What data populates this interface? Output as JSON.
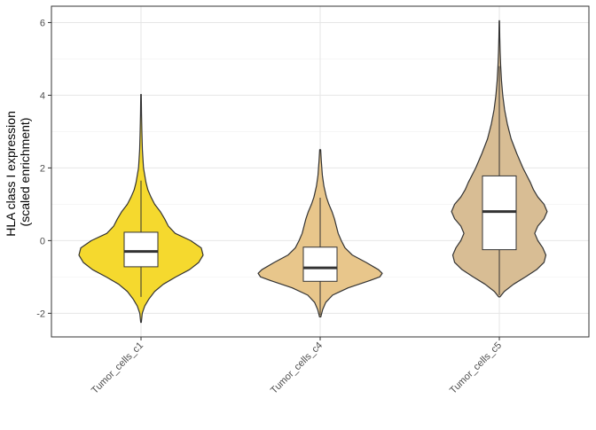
{
  "chart_data": {
    "type": "violin",
    "title": "",
    "xlabel": "",
    "ylabel_line1": "HLA class I expression",
    "ylabel_line2": "(scaled enrichment)",
    "ylim": [
      -2.65,
      6.45
    ],
    "yticks": [
      -2,
      0,
      2,
      4,
      6
    ],
    "ytick_labels": [
      "-2",
      "0",
      "2",
      "4",
      "6"
    ],
    "grid": true,
    "legend": "none",
    "categories": [
      "Tumor_cells_c1",
      "Tumor_cells_c4",
      "Tumor_cells_c5"
    ],
    "groups": [
      {
        "name": "Tumor_cells_c1",
        "color": "#F5D92E",
        "min": -2.25,
        "q1": -0.72,
        "median": -0.3,
        "q3": 0.23,
        "max": 4.02,
        "whisker_low": -1.55,
        "whisker_high": 1.65,
        "density": [
          [
            -2.25,
            0.005
          ],
          [
            -2.0,
            0.02
          ],
          [
            -1.8,
            0.06
          ],
          [
            -1.6,
            0.13
          ],
          [
            -1.4,
            0.22
          ],
          [
            -1.2,
            0.36
          ],
          [
            -1.0,
            0.56
          ],
          [
            -0.8,
            0.78
          ],
          [
            -0.6,
            0.93
          ],
          [
            -0.4,
            1.0
          ],
          [
            -0.2,
            0.97
          ],
          [
            0.0,
            0.8
          ],
          [
            0.2,
            0.55
          ],
          [
            0.4,
            0.44
          ],
          [
            0.6,
            0.38
          ],
          [
            0.8,
            0.31
          ],
          [
            1.0,
            0.22
          ],
          [
            1.2,
            0.16
          ],
          [
            1.4,
            0.11
          ],
          [
            1.6,
            0.08
          ],
          [
            1.8,
            0.06
          ],
          [
            2.0,
            0.04
          ],
          [
            2.5,
            0.022
          ],
          [
            3.0,
            0.014
          ],
          [
            3.5,
            0.008
          ],
          [
            4.02,
            0.004
          ]
        ]
      },
      {
        "name": "Tumor_cells_c4",
        "color": "#E8C68B",
        "min": -2.1,
        "q1": -1.12,
        "median": -0.75,
        "q3": -0.18,
        "max": 2.5,
        "whisker_low": -2.05,
        "whisker_high": 1.18,
        "density": [
          [
            -2.1,
            0.01
          ],
          [
            -1.9,
            0.04
          ],
          [
            -1.7,
            0.09
          ],
          [
            -1.5,
            0.2
          ],
          [
            -1.3,
            0.45
          ],
          [
            -1.1,
            0.8
          ],
          [
            -1.0,
            0.96
          ],
          [
            -0.9,
            1.0
          ],
          [
            -0.8,
            0.94
          ],
          [
            -0.6,
            0.74
          ],
          [
            -0.4,
            0.52
          ],
          [
            -0.2,
            0.4
          ],
          [
            0.0,
            0.34
          ],
          [
            0.2,
            0.29
          ],
          [
            0.4,
            0.26
          ],
          [
            0.6,
            0.23
          ],
          [
            0.8,
            0.19
          ],
          [
            1.0,
            0.14
          ],
          [
            1.2,
            0.1
          ],
          [
            1.5,
            0.06
          ],
          [
            1.8,
            0.035
          ],
          [
            2.2,
            0.018
          ],
          [
            2.5,
            0.008
          ]
        ]
      },
      {
        "name": "Tumor_cells_c5",
        "color": "#D8BD94",
        "min": -1.55,
        "q1": -0.25,
        "median": 0.8,
        "q3": 1.78,
        "max": 6.05,
        "whisker_low": -1.5,
        "whisker_high": 4.8,
        "density": [
          [
            -1.55,
            0.01
          ],
          [
            -1.4,
            0.08
          ],
          [
            -1.2,
            0.23
          ],
          [
            -1.0,
            0.42
          ],
          [
            -0.8,
            0.6
          ],
          [
            -0.6,
            0.72
          ],
          [
            -0.4,
            0.75
          ],
          [
            -0.2,
            0.7
          ],
          [
            0.0,
            0.62
          ],
          [
            0.2,
            0.57
          ],
          [
            0.4,
            0.62
          ],
          [
            0.6,
            0.72
          ],
          [
            0.8,
            0.77
          ],
          [
            1.0,
            0.72
          ],
          [
            1.2,
            0.62
          ],
          [
            1.4,
            0.55
          ],
          [
            1.6,
            0.5
          ],
          [
            1.8,
            0.44
          ],
          [
            2.0,
            0.38
          ],
          [
            2.4,
            0.28
          ],
          [
            2.8,
            0.19
          ],
          [
            3.2,
            0.13
          ],
          [
            3.6,
            0.085
          ],
          [
            4.0,
            0.055
          ],
          [
            4.4,
            0.035
          ],
          [
            4.8,
            0.022
          ],
          [
            5.2,
            0.013
          ],
          [
            5.6,
            0.007
          ],
          [
            6.05,
            0.003
          ]
        ]
      }
    ]
  }
}
